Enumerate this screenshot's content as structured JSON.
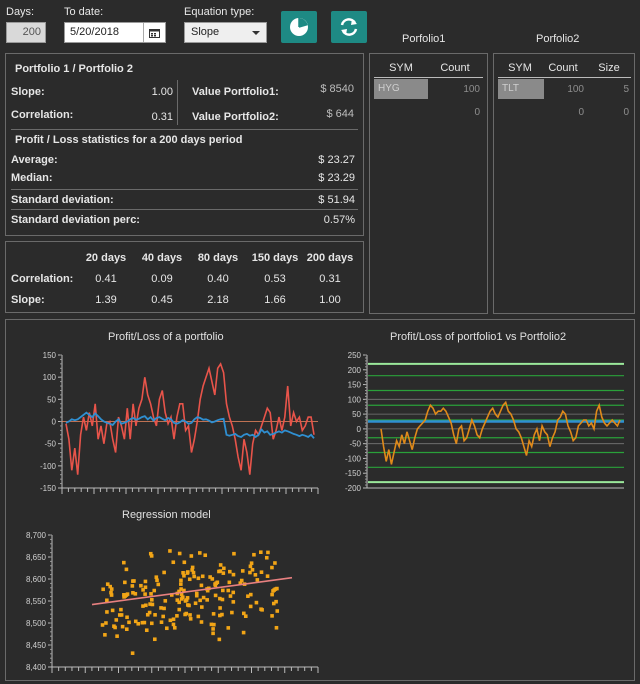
{
  "controls": {
    "days_label": "Days:",
    "days_value": "200",
    "todate_label": "To date:",
    "todate_value": "5/20/2018",
    "eqtype_label": "Equation type:",
    "eqtype_value": "Slope"
  },
  "summary": {
    "title": "Portfolio 1 / Portfolio 2",
    "slope_label": "Slope:",
    "slope_value": "1.00",
    "corr_label": "Correlation:",
    "corr_value": "0.31",
    "vp1_label": "Value Portfolio1:",
    "vp1_value": "$ 8540",
    "vp2_label": "Value Portfolio2:",
    "vp2_value": "$ 644",
    "pl_title": "Profit / Loss statistics for a 200 days period",
    "avg_label": "Average:",
    "avg_value": "$ 23.27",
    "median_label": "Median:",
    "median_value": "$ 23.29",
    "sd_label": "Standard deviation:",
    "sd_value": "$ 51.94",
    "sdp_label": "Standard deviation perc:",
    "sdp_value": "0.57%"
  },
  "periods": {
    "headers": [
      "20 days",
      "40 days",
      "80 days",
      "150 days",
      "200 days"
    ],
    "corr_label": "Correlation:",
    "corr": [
      "0.41",
      "0.09",
      "0.40",
      "0.53",
      "0.31"
    ],
    "slope_label": "Slope:",
    "slope": [
      "1.39",
      "0.45",
      "2.18",
      "1.66",
      "1.00"
    ]
  },
  "portfolio1": {
    "title": "Porfolio1",
    "col_sym": "SYM",
    "col_count": "Count",
    "row1_sym": "HYG",
    "row1_count": "100",
    "row2_count": "0"
  },
  "portfolio2": {
    "title": "Porfolio2",
    "col_sym": "SYM",
    "col_count": "Count",
    "col_size": "Size",
    "row1_sym": "TLT",
    "row1_count": "100",
    "row1_size": "5",
    "row2_count": "0",
    "row2_size": "0"
  },
  "colors": {
    "accent": "#1e8a84",
    "red_series": "#e8544a",
    "blue_series": "#2f8fd1",
    "orange_series": "#e08a1a",
    "green_band": "#2aa13a",
    "light_green": "#9be89b",
    "scatter": "#f2a516",
    "regression": "#e88080"
  },
  "icons": {
    "calendar": "calendar-icon",
    "pie": "pie-chart-icon",
    "refresh": "refresh-icon",
    "dropdown": "chevron-down-icon"
  },
  "chart_data": [
    {
      "type": "line",
      "title": "Profit/Loss of a portfolio",
      "ylim": [
        -150,
        150
      ],
      "yticks": [
        "150",
        "100",
        "50",
        "0",
        "-50",
        "-100",
        "-150"
      ],
      "series": [
        {
          "values": [
            -5,
            -40,
            -110,
            -60,
            -120,
            -30,
            10,
            -20,
            20,
            -10,
            40,
            -40,
            -10,
            -50,
            -5,
            0,
            -40,
            -70,
            10,
            -10,
            -40,
            30,
            -40,
            40,
            -10,
            30,
            50,
            100,
            60,
            40,
            10,
            -10,
            50,
            70,
            20,
            -5,
            10,
            -40,
            10,
            40,
            40,
            -20,
            -10,
            -70,
            -40,
            0,
            50,
            80,
            100,
            120,
            90,
            60,
            120,
            130,
            110,
            40,
            10,
            -10,
            -40,
            -80,
            -110,
            -40,
            -70,
            -120,
            -50,
            -20,
            -30,
            -10,
            10,
            30,
            20,
            -40,
            -20,
            10,
            -20,
            10,
            80,
            -10,
            20,
            0,
            10,
            -20,
            -10,
            10,
            10,
            -30
          ]
        },
        {
          "values": [
            -3,
            0,
            5,
            3,
            5,
            10,
            15,
            20,
            15,
            10,
            18,
            12,
            5,
            0,
            -3,
            -5,
            -8,
            0,
            5,
            -5,
            -3,
            0,
            5,
            8,
            4,
            6,
            10,
            12,
            5,
            10,
            2,
            8,
            10,
            6,
            3,
            8,
            5,
            -3,
            -5,
            -2,
            3,
            0,
            -5,
            -3,
            5,
            10,
            8,
            4,
            5,
            2,
            -2,
            0,
            3,
            5,
            6,
            -30,
            -32,
            -30,
            -28,
            -33,
            -35,
            -30,
            -28,
            -32,
            -30,
            -35,
            -30,
            -18,
            -25,
            -22,
            -30,
            -28,
            -25,
            -22,
            -25,
            -20,
            -22,
            -25,
            -28,
            -30,
            -33,
            -30,
            -32,
            -35,
            -30,
            -38
          ]
        }
      ]
    },
    {
      "type": "line",
      "title": "Profit/Loss of portfolio1 vs Portfolio2",
      "ylim": [
        -200,
        250
      ],
      "yticks": [
        "250",
        "200",
        "150",
        "100",
        "50",
        "0",
        "-50",
        "-100",
        "-150",
        "-200"
      ],
      "series": [
        {
          "values": [
            0,
            -60,
            -110,
            -70,
            -120,
            -80,
            -40,
            -60,
            -20,
            -50,
            -10,
            -40,
            -70,
            -30,
            0,
            10,
            20,
            30,
            60,
            80,
            70,
            50,
            60,
            60,
            70,
            60,
            40,
            20,
            -20,
            -50,
            0,
            10,
            -40,
            -30,
            0,
            30,
            10,
            -20,
            -30,
            0,
            20,
            40,
            60,
            70,
            50,
            40,
            60,
            80,
            90,
            60,
            50,
            30,
            0,
            -10,
            -30,
            -60,
            -90,
            -40,
            -60,
            -20,
            0,
            -40,
            10,
            -10,
            -20,
            -60,
            -30,
            -10,
            30,
            40,
            60,
            50,
            10,
            -10,
            -40,
            -30,
            10,
            20,
            30,
            30,
            10,
            20,
            0,
            60,
            80,
            40,
            20,
            10,
            20,
            30,
            20,
            10,
            30
          ]
        }
      ],
      "bands": [
        220,
        180,
        130,
        80,
        30,
        -30,
        -80,
        -130,
        -180
      ],
      "mean_line": 25
    },
    {
      "type": "scatter",
      "title": "Regression model",
      "ylim": [
        8400,
        8700
      ],
      "yticks": [
        "8,700",
        "8,650",
        "8,600",
        "8,550",
        "8,500",
        "8,450",
        "8,400"
      ],
      "regression": [
        [
          0,
          8542
        ],
        [
          1,
          8603
        ]
      ]
    }
  ]
}
